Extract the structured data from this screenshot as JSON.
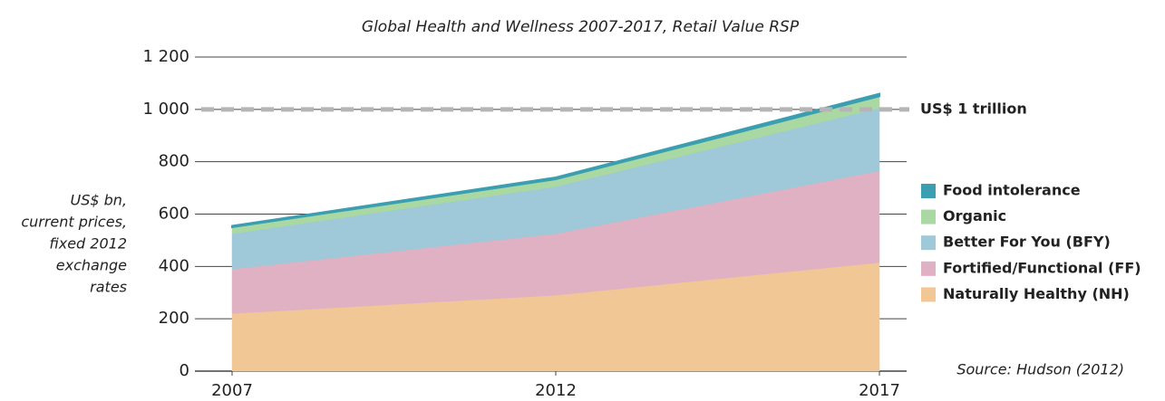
{
  "chart_data": {
    "type": "stacked_area",
    "title": "Global Health and Wellness 2007-2017, Retail Value RSP",
    "ylabel_lines": [
      "US$ bn,",
      "current prices,",
      "fixed 2012",
      "exchange",
      "rates"
    ],
    "x": [
      2007,
      2012,
      2017
    ],
    "xlim": [
      2007,
      2017
    ],
    "xticks": [
      2007,
      2012,
      2017
    ],
    "ylim": [
      0,
      1200
    ],
    "yticks": [
      0,
      200,
      400,
      600,
      800,
      {
        "value": 1000,
        "label": "1 000"
      },
      {
        "value": 1200,
        "label": "1 200"
      }
    ],
    "grid": true,
    "reference_line": {
      "value": 1000,
      "label": "US$ 1 trillion"
    },
    "series": [
      {
        "name": "Naturally Healthy (NH)",
        "color": "#f0c795",
        "values": [
          220,
          290,
          415
        ]
      },
      {
        "name": "Fortified/Functional (FF)",
        "color": "#dfb1c2",
        "values": [
          170,
          235,
          350
        ]
      },
      {
        "name": "Better For You (BFY)",
        "color": "#9fc8d8",
        "values": [
          135,
          180,
          240
        ]
      },
      {
        "name": "Organic",
        "color": "#a9d8a2",
        "values": [
          25,
          28,
          45
        ]
      },
      {
        "name": "Food intolerance",
        "color": "#3b9fb1",
        "values": [
          5,
          7,
          10
        ]
      }
    ],
    "legend": "right",
    "annotation": "Source:  Hudson (2012)"
  }
}
